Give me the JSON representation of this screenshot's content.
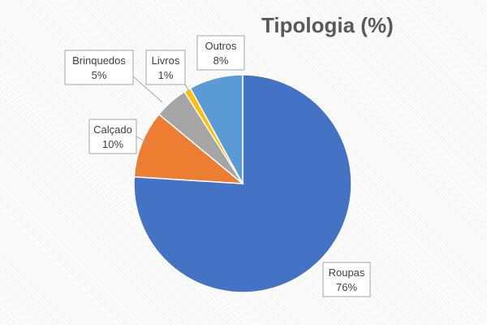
{
  "chart_data": {
    "type": "pie",
    "title": "Tipologia (%)",
    "slices": [
      {
        "label": "Roupas",
        "value": 76,
        "display": "76%",
        "color": "#4472C4"
      },
      {
        "label": "Calçado",
        "value": 10,
        "display": "10%",
        "color": "#ED7D31"
      },
      {
        "label": "Brinquedos",
        "value": 5,
        "display": "5%",
        "color": "#A5A5A5"
      },
      {
        "label": "Livros",
        "value": 1,
        "display": "1%",
        "color": "#FFC000"
      },
      {
        "label": "Outros",
        "value": 8,
        "display": "8%",
        "color": "#5B9BD5"
      }
    ],
    "start": "12 o'clock, clockwise",
    "legend": "none",
    "data_labels": "callout boxes"
  }
}
